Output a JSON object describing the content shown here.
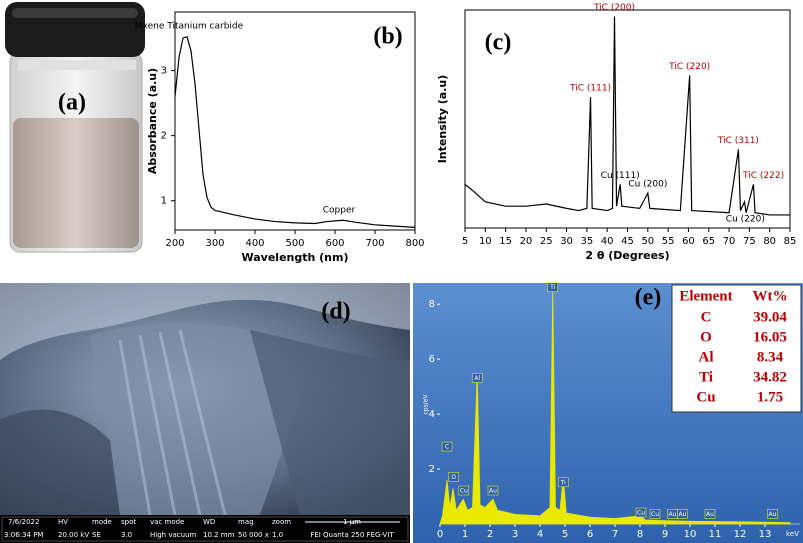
{
  "photo": {
    "label": "(a)"
  },
  "chart_data": [
    {
      "type": "line",
      "label": "(b)",
      "x_label": "Wavelength (nm)",
      "y_label": "Absorbance (a.u)",
      "color": "#000000",
      "x": [
        200,
        210,
        220,
        230,
        240,
        250,
        260,
        270,
        280,
        290,
        300,
        350,
        400,
        450,
        500,
        550,
        580,
        620,
        650,
        700,
        750,
        800
      ],
      "values": [
        2.6,
        3.2,
        3.5,
        3.52,
        3.3,
        2.8,
        2.1,
        1.4,
        1.05,
        0.9,
        0.85,
        0.78,
        0.72,
        0.68,
        0.66,
        0.65,
        0.68,
        0.7,
        0.67,
        0.63,
        0.61,
        0.59
      ],
      "xlim": [
        200,
        800
      ],
      "xticks": [
        200,
        300,
        400,
        500,
        600,
        700,
        800
      ],
      "ylim": [
        0.55,
        3.9
      ],
      "yticks": [
        1,
        2,
        3
      ],
      "annotations": [
        {
          "text": "Mxene Titanium carbide",
          "x": 235,
          "y": 3.55,
          "color": "#000000"
        },
        {
          "text": "Copper",
          "x": 610,
          "y": 0.72,
          "color": "#000000"
        }
      ]
    },
    {
      "type": "line",
      "label": "(c)",
      "x_label": "2 θ (Degrees)",
      "y_label": "Intensity (a.u)",
      "color": "#000000",
      "x": [
        5,
        7,
        10,
        15,
        20,
        25,
        30,
        33,
        35,
        35.9,
        36.3,
        40,
        41.3,
        41.8,
        42.3,
        43.2,
        43.6,
        48,
        50,
        50.5,
        58,
        60.3,
        60.8,
        70,
        72.3,
        72.8,
        73.8,
        74.2,
        76,
        76.4,
        80,
        85
      ],
      "values": [
        20,
        17,
        12,
        10,
        10,
        11,
        9,
        8,
        9,
        60,
        9,
        8,
        9,
        97,
        10,
        20,
        10,
        9,
        16,
        9,
        8,
        70,
        8,
        7,
        36,
        8,
        12,
        7,
        20,
        7,
        6,
        6
      ],
      "xlim": [
        5,
        85
      ],
      "xticks": [
        5,
        10,
        15,
        20,
        25,
        30,
        35,
        40,
        45,
        50,
        55,
        60,
        65,
        70,
        75,
        80,
        85
      ],
      "ylim": [
        0,
        100
      ],
      "annotations": [
        {
          "text": "TiC (111)",
          "x": 35.9,
          "y": 60,
          "color": "#c00000"
        },
        {
          "text": "TiC (200)",
          "x": 41.8,
          "y": 97,
          "color": "#c00000"
        },
        {
          "text": "Cu (111)",
          "x": 43.2,
          "y": 20,
          "color": "#000000"
        },
        {
          "text": "Cu (200)",
          "x": 50,
          "y": 16,
          "color": "#000000"
        },
        {
          "text": "TiC (220)",
          "x": 60.3,
          "y": 70,
          "color": "#c00000"
        },
        {
          "text": "TiC (311)",
          "x": 72.3,
          "y": 36,
          "color": "#c00000"
        },
        {
          "text": "TiC (222)",
          "x": 78.5,
          "y": 20,
          "color": "#c00000"
        },
        {
          "text": "Cu (220)",
          "x": 74,
          "y": 0,
          "color": "#000000"
        }
      ]
    },
    {
      "type": "area",
      "y_label": "cps/eV",
      "x_unit": "keV",
      "color": "#e8e800",
      "x": [
        0,
        0.1,
        0.28,
        0.4,
        0.52,
        0.65,
        0.93,
        1.1,
        1.3,
        1.49,
        1.6,
        1.8,
        2.12,
        2.3,
        3,
        4,
        4.4,
        4.51,
        4.62,
        4.8,
        4.93,
        5.05,
        6,
        7,
        8.04,
        8.2,
        9,
        10,
        12,
        14
      ],
      "values": [
        0,
        0.3,
        1.6,
        0.6,
        1.3,
        0.5,
        0.9,
        0.5,
        0.6,
        5.5,
        0.7,
        0.6,
        0.9,
        0.5,
        0.35,
        0.3,
        0.6,
        8.6,
        0.6,
        0.5,
        1.7,
        0.4,
        0.25,
        0.2,
        0.3,
        0.15,
        0.12,
        0.1,
        0.08,
        0.05
      ],
      "xlim": [
        0,
        14.4
      ],
      "xticks": [
        0,
        1,
        2,
        3,
        4,
        5,
        6,
        7,
        8,
        9,
        10,
        11,
        12,
        13
      ],
      "ylim": [
        0,
        8.7
      ],
      "yticks": [
        2,
        4,
        6,
        8
      ],
      "annotations": [
        {
          "text": "C",
          "x": 0.28,
          "y": 2.8
        },
        {
          "text": "O",
          "x": 0.55,
          "y": 1.7
        },
        {
          "text": "Cu",
          "x": 0.95,
          "y": 1.2
        },
        {
          "text": "Al",
          "x": 1.49,
          "y": 5.3
        },
        {
          "text": "Au",
          "x": 2.12,
          "y": 1.2
        },
        {
          "text": "Ti",
          "x": 4.51,
          "y": 8.6
        },
        {
          "text": "Ti",
          "x": 4.93,
          "y": 1.5
        },
        {
          "text": "Cu",
          "x": 8.04,
          "y": 0.4
        },
        {
          "text": "Cu",
          "x": 8.6,
          "y": 0.35
        },
        {
          "text": "Au",
          "x": 9.3,
          "y": 0.35
        },
        {
          "text": "Au",
          "x": 9.7,
          "y": 0.35
        },
        {
          "text": "Au",
          "x": 10.8,
          "y": 0.35
        },
        {
          "text": "Au",
          "x": 13.3,
          "y": 0.35
        }
      ]
    }
  ],
  "sem": {
    "label": "(d)",
    "date": "7/6/2022",
    "time": "3:06:34 PM",
    "fields": [
      {
        "name": "HV",
        "value": "20.00 kV"
      },
      {
        "name": "mode",
        "value": "SE"
      },
      {
        "name": "spot",
        "value": "3.0"
      },
      {
        "name": "vac mode",
        "value": "High vacuum"
      },
      {
        "name": "WD",
        "value": "10.2 mm"
      },
      {
        "name": "mag",
        "value": "50 000 x"
      },
      {
        "name": "zoom",
        "value": "1.0"
      }
    ],
    "scale": "1 µm",
    "instrument": "FEI Quanta 250 FEG-VIT"
  },
  "eds": {
    "label": "(e)",
    "header": [
      "Element",
      "Wt%"
    ],
    "rows": [
      [
        "C",
        39.04
      ],
      [
        "O",
        16.05
      ],
      [
        "Al",
        8.34
      ],
      [
        "Ti",
        34.82
      ],
      [
        "Cu",
        1.75
      ]
    ]
  }
}
